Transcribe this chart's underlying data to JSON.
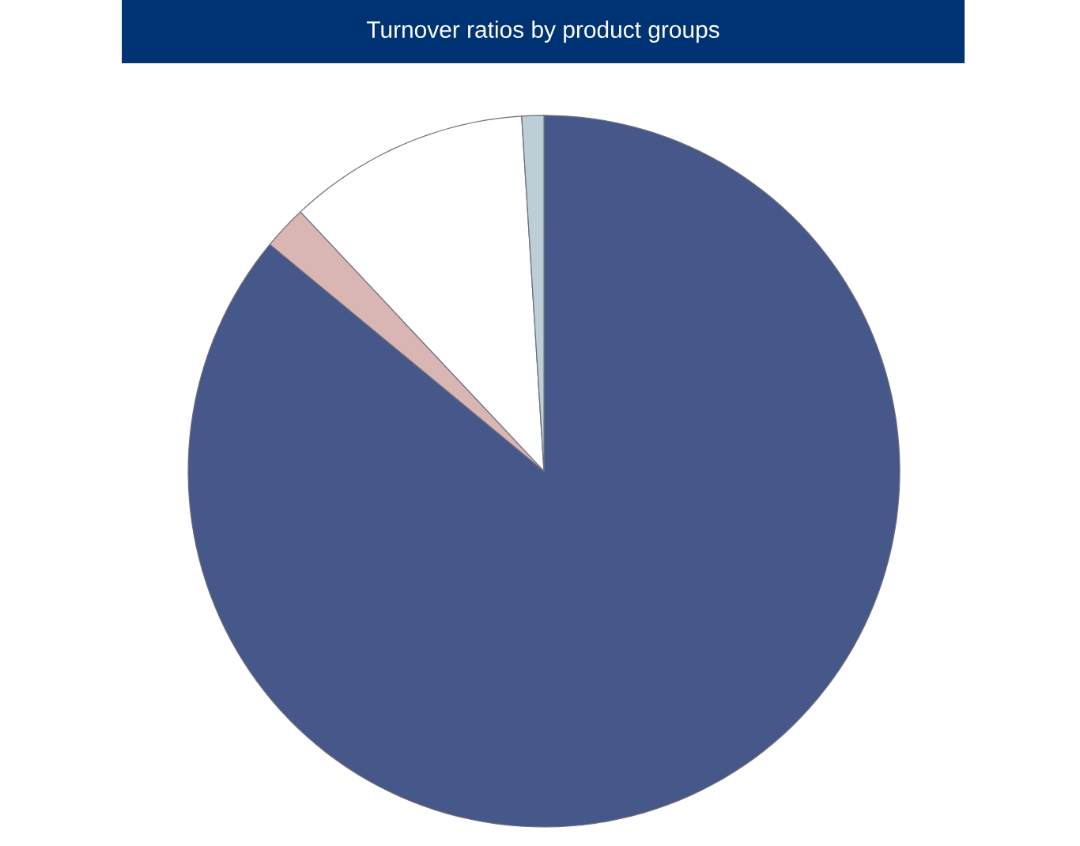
{
  "chart_data": {
    "type": "pie",
    "title": "Turnover ratios by product groups",
    "categories": [
      null,
      null,
      null,
      null
    ],
    "values": [
      86,
      2,
      11,
      1
    ],
    "colors": [
      "#46578a",
      "#d9b5b3",
      "#ffffff",
      "#bccfd6"
    ]
  }
}
